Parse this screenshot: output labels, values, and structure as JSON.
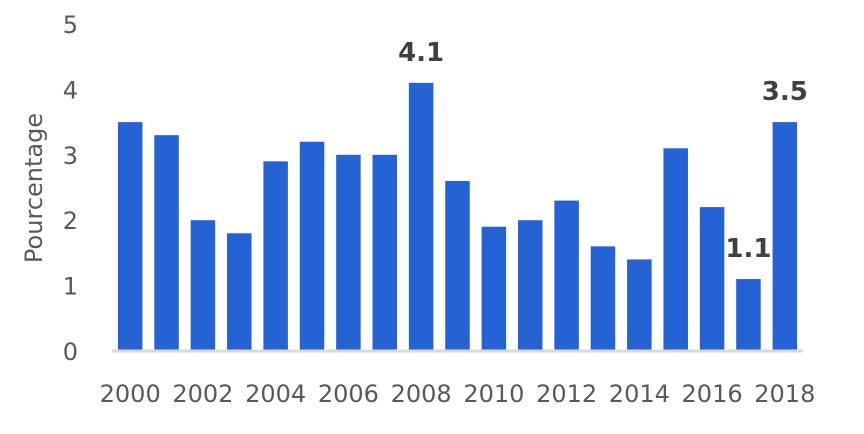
{
  "chart_data": {
    "type": "bar",
    "title": "",
    "xlabel": "",
    "ylabel": "Pourcentage",
    "ylim": [
      0,
      5
    ],
    "y_ticks": [
      0,
      1,
      2,
      3,
      4,
      5
    ],
    "categories": [
      "2000",
      "2001",
      "2002",
      "2003",
      "2004",
      "2005",
      "2006",
      "2007",
      "2008",
      "2009",
      "2010",
      "2011",
      "2012",
      "2013",
      "2014",
      "2015",
      "2016",
      "2017",
      "2018"
    ],
    "x_tick_labels": [
      "2000",
      "",
      "2002",
      "",
      "2004",
      "",
      "2006",
      "",
      "2008",
      "",
      "2010",
      "",
      "2012",
      "",
      "2014",
      "",
      "2016",
      "",
      "2018"
    ],
    "values": [
      3.5,
      3.3,
      2.0,
      1.8,
      2.9,
      3.2,
      3.0,
      3.0,
      4.1,
      2.6,
      1.9,
      2.0,
      2.3,
      1.6,
      1.4,
      3.1,
      2.2,
      1.1,
      3.5
    ],
    "data_labels": {
      "2008": "4.1",
      "2017": "1.1",
      "2018": "3.5"
    },
    "bar_color": "#2563d4",
    "axis_color": "#d9d9d9",
    "grid": false,
    "legend": "none"
  }
}
